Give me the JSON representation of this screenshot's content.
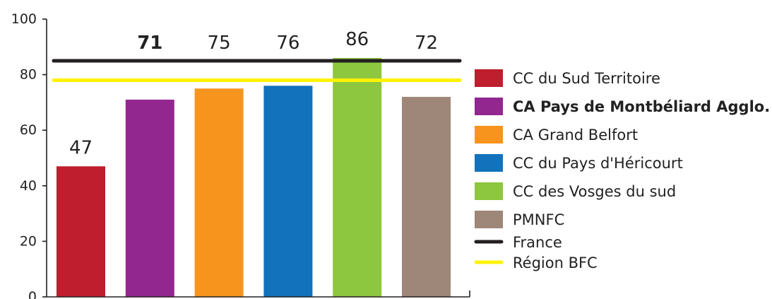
{
  "chart_data": {
    "type": "bar",
    "categories": [
      "CC du Sud Territoire",
      "CA Pays de Montbéliard Agglo.",
      "CA Grand Belfort",
      "CC du Pays d'Héricourt",
      "CC des Vosges du sud",
      "PMNFC"
    ],
    "values": [
      47,
      71,
      75,
      76,
      86,
      72
    ],
    "value_labels": [
      "47",
      "71",
      "75",
      "76",
      "86",
      "72"
    ],
    "colors": [
      "#be1e2d",
      "#92278f",
      "#f7941d",
      "#1272bc",
      "#8dc63f",
      "#9e8779"
    ],
    "highlight_index": 1,
    "ylim": [
      0,
      100
    ],
    "yticks": [
      "0",
      "20",
      "40",
      "60",
      "80",
      "100"
    ],
    "reference_lines": [
      {
        "name": "France",
        "value": 85,
        "color": "#231f20"
      },
      {
        "name": "Région BFC",
        "value": 78,
        "color": "#fff200"
      }
    ],
    "legend_position": "right",
    "grid": false
  }
}
